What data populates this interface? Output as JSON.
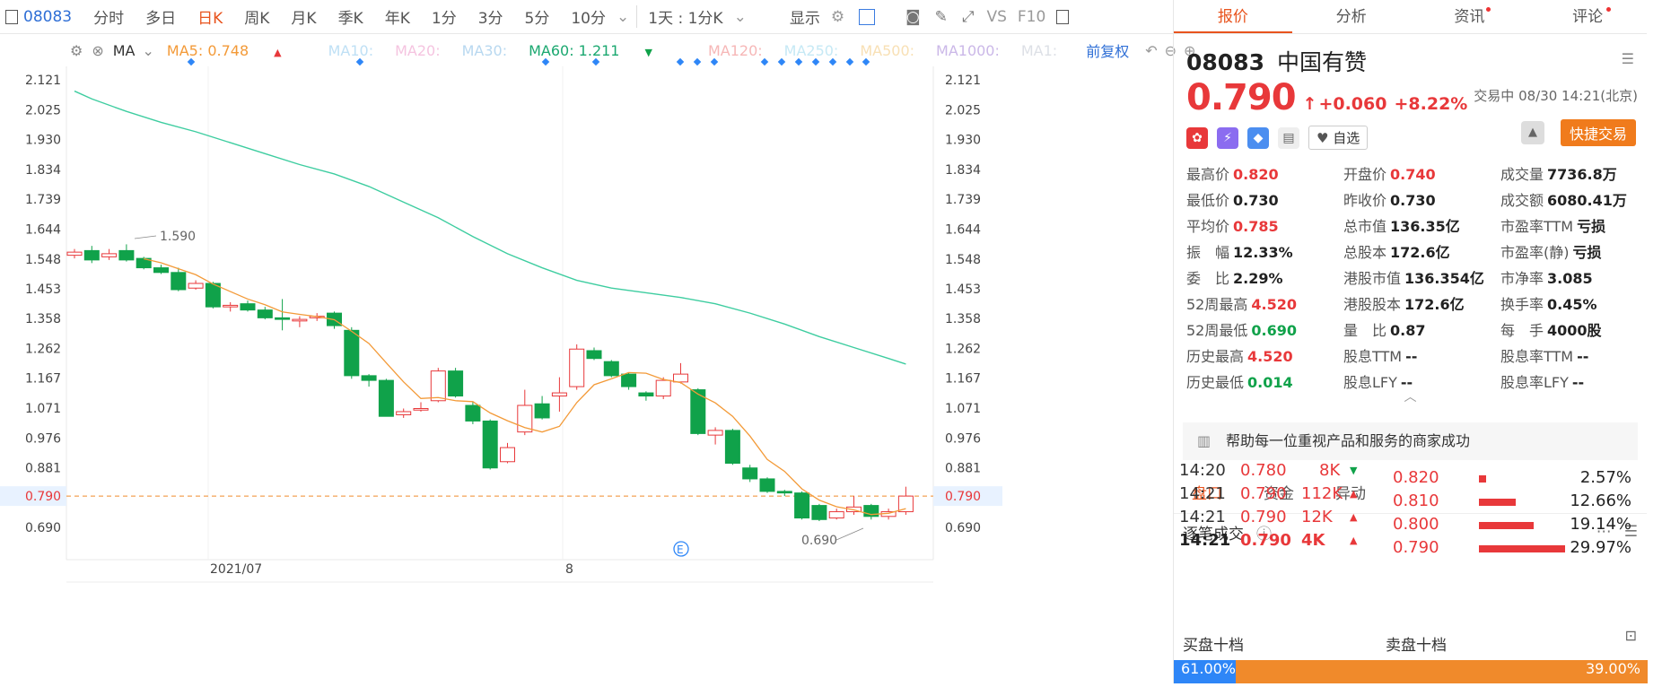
{
  "toolbar": {
    "code": "08083",
    "items": [
      "分时",
      "多日",
      "日K",
      "周K",
      "月K",
      "季K",
      "年K",
      "1分",
      "3分",
      "5分",
      "10分"
    ],
    "period": "1天 : 1分K",
    "display": "显示",
    "vs": "VS",
    "f10": "F10"
  },
  "ma": {
    "label": "MA",
    "ma5": "MA5: 0.748",
    "ma10": "MA10:",
    "ma20": "MA20:",
    "ma30": "MA30:",
    "ma60": "MA60: 1.211",
    "ma120": "MA120:",
    "ma250": "MA250:",
    "ma500": "MA500:",
    "ma1000": "MA1000:",
    "ma1": "MA1:",
    "fq": "前复权"
  },
  "colors": {
    "up": "#e8383a",
    "down": "#10a24a",
    "ma5": "#f39a38",
    "ma60": "#3ecda0"
  },
  "chart_data": {
    "type": "candlestick",
    "yticks": [
      "2.121",
      "2.025",
      "1.930",
      "1.834",
      "1.739",
      "1.644",
      "1.548",
      "1.453",
      "1.358",
      "1.262",
      "1.167",
      "1.071",
      "0.976",
      "0.881",
      "0.790",
      "0.690"
    ],
    "xticks": [
      "2021/07",
      "8"
    ],
    "current": "0.790",
    "hi_label": "1.590",
    "lo_label": "0.690",
    "candles": [
      [
        1.56,
        1.57,
        1.58,
        1.55
      ],
      [
        1.575,
        1.545,
        1.59,
        1.535
      ],
      [
        1.555,
        1.565,
        1.58,
        1.545
      ],
      [
        1.575,
        1.545,
        1.595,
        1.54
      ],
      [
        1.55,
        1.52,
        1.555,
        1.515
      ],
      [
        1.52,
        1.505,
        1.53,
        1.5
      ],
      [
        1.505,
        1.45,
        1.52,
        1.445
      ],
      [
        1.455,
        1.47,
        1.48,
        1.45
      ],
      [
        1.47,
        1.395,
        1.475,
        1.39
      ],
      [
        1.395,
        1.4,
        1.41,
        1.38
      ],
      [
        1.405,
        1.385,
        1.415,
        1.38
      ],
      [
        1.385,
        1.36,
        1.395,
        1.355
      ],
      [
        1.36,
        1.355,
        1.42,
        1.32
      ],
      [
        1.35,
        1.355,
        1.365,
        1.33
      ],
      [
        1.36,
        1.365,
        1.375,
        1.35
      ],
      [
        1.375,
        1.335,
        1.38,
        1.325
      ],
      [
        1.32,
        1.175,
        1.33,
        1.165
      ],
      [
        1.175,
        1.16,
        1.18,
        1.14
      ],
      [
        1.16,
        1.045,
        1.165,
        1.045
      ],
      [
        1.05,
        1.06,
        1.07,
        1.04
      ],
      [
        1.065,
        1.07,
        1.09,
        1.06
      ],
      [
        1.095,
        1.19,
        1.2,
        1.09
      ],
      [
        1.19,
        1.11,
        1.2,
        1.105
      ],
      [
        1.08,
        1.03,
        1.09,
        1.02
      ],
      [
        1.03,
        0.88,
        1.035,
        0.875
      ],
      [
        0.9,
        0.945,
        0.96,
        0.895
      ],
      [
        0.995,
        1.08,
        1.13,
        0.985
      ],
      [
        1.085,
        1.04,
        1.11,
        1.035
      ],
      [
        1.11,
        1.12,
        1.17,
        1.06
      ],
      [
        1.14,
        1.26,
        1.275,
        1.13
      ],
      [
        1.255,
        1.23,
        1.265,
        1.225
      ],
      [
        1.22,
        1.175,
        1.225,
        1.17
      ],
      [
        1.18,
        1.14,
        1.185,
        1.13
      ],
      [
        1.12,
        1.11,
        1.125,
        1.095
      ],
      [
        1.11,
        1.16,
        1.17,
        1.1
      ],
      [
        1.155,
        1.18,
        1.215,
        1.15
      ],
      [
        1.13,
        0.99,
        1.135,
        0.985
      ],
      [
        0.985,
        1.0,
        1.01,
        0.955
      ],
      [
        1.0,
        0.895,
        1.005,
        0.89
      ],
      [
        0.88,
        0.845,
        0.89,
        0.835
      ],
      [
        0.845,
        0.805,
        0.85,
        0.8
      ],
      [
        0.805,
        0.8,
        0.81,
        0.79
      ],
      [
        0.8,
        0.72,
        0.805,
        0.715
      ],
      [
        0.76,
        0.715,
        0.765,
        0.71
      ],
      [
        0.72,
        0.74,
        0.75,
        0.715
      ],
      [
        0.74,
        0.755,
        0.79,
        0.73
      ],
      [
        0.76,
        0.725,
        0.765,
        0.715
      ],
      [
        0.725,
        0.74,
        0.75,
        0.715
      ],
      [
        0.74,
        0.79,
        0.82,
        0.73
      ]
    ],
    "ma60": [
      [
        0,
        2.085
      ],
      [
        1,
        2.06
      ],
      [
        3,
        2.02
      ],
      [
        5,
        1.985
      ],
      [
        7,
        1.955
      ],
      [
        9,
        1.92
      ],
      [
        11,
        1.885
      ],
      [
        13,
        1.85
      ],
      [
        15,
        1.82
      ],
      [
        17,
        1.78
      ],
      [
        19,
        1.73
      ],
      [
        21,
        1.68
      ],
      [
        23,
        1.62
      ],
      [
        25,
        1.565
      ],
      [
        27,
        1.52
      ],
      [
        29,
        1.48
      ],
      [
        31,
        1.455
      ],
      [
        33,
        1.44
      ],
      [
        35,
        1.425
      ],
      [
        37,
        1.405
      ],
      [
        39,
        1.375
      ],
      [
        41,
        1.34
      ],
      [
        43,
        1.3
      ],
      [
        45,
        1.265
      ],
      [
        47,
        1.23
      ],
      [
        48,
        1.212
      ]
    ]
  },
  "right": {
    "tabs": [
      "报价",
      "分析",
      "资讯",
      "评论"
    ],
    "code": "08083",
    "name": "中国有赞",
    "price": "0.790",
    "change": "+0.060",
    "pct": "+8.22%",
    "status": "交易中 08/30 14:21(北京)",
    "zixuan": "自选",
    "trade": "快捷交易"
  },
  "quote": [
    [
      "最高价",
      "0.820",
      "red"
    ],
    [
      "开盘价",
      "0.740",
      "red"
    ],
    [
      "成交量",
      "7736.8万",
      "blk"
    ],
    [
      "最低价",
      "0.730",
      "blk"
    ],
    [
      "昨收价",
      "0.730",
      "blk"
    ],
    [
      "成交额",
      "6080.41万",
      "blk"
    ],
    [
      "平均价",
      "0.785",
      "red"
    ],
    [
      "总市值",
      "136.35亿",
      "blk"
    ],
    [
      "市盈率TTM",
      "亏损",
      "blk"
    ],
    [
      "振　幅",
      "12.33%",
      "blk"
    ],
    [
      "总股本",
      "172.6亿",
      "blk"
    ],
    [
      "市盈率(静)",
      "亏损",
      "blk"
    ],
    [
      "委　比",
      "2.29%",
      "blk"
    ],
    [
      "港股市值",
      "136.354亿",
      "blk"
    ],
    [
      "市净率",
      "3.085",
      "blk"
    ],
    [
      "52周最高",
      "4.520",
      "red"
    ],
    [
      "港股股本",
      "172.6亿",
      "blk"
    ],
    [
      "换手率",
      "0.45%",
      "blk"
    ],
    [
      "52周最低",
      "0.690",
      "green"
    ],
    [
      "量　比",
      "0.87",
      "blk"
    ],
    [
      "每　手",
      "4000股",
      "blk"
    ],
    [
      "历史最高",
      "4.520",
      "red"
    ],
    [
      "股息TTM",
      "--",
      "blk"
    ],
    [
      "股息率TTM",
      "--",
      "blk"
    ],
    [
      "历史最低",
      "0.014",
      "green"
    ],
    [
      "股息LFY",
      "--",
      "blk"
    ],
    [
      "股息率LFY",
      "--",
      "blk"
    ]
  ],
  "banner": "帮助每一位重视产品和服务的商家成功",
  "tabs2": [
    "盘口",
    "资金",
    "异动"
  ],
  "ticks_title": "逐笔成交",
  "ticks": [
    [
      "14:20",
      "0.780",
      "8K"
    ],
    [
      "14:21",
      "0.790",
      "112K"
    ],
    [
      "14:21",
      "0.790",
      "12K"
    ],
    [
      "14:21",
      "0.790",
      "4K"
    ]
  ],
  "depth": [
    [
      "0.820",
      "2.57%"
    ],
    [
      "0.810",
      "12.66%"
    ],
    [
      "0.800",
      "19.14%"
    ],
    [
      "0.790",
      "29.97%"
    ]
  ],
  "buy_sell": {
    "buy": "买盘十档",
    "sell": "卖盘十档",
    "buy_pct": "61.00%",
    "sell_pct": "39.00%"
  }
}
